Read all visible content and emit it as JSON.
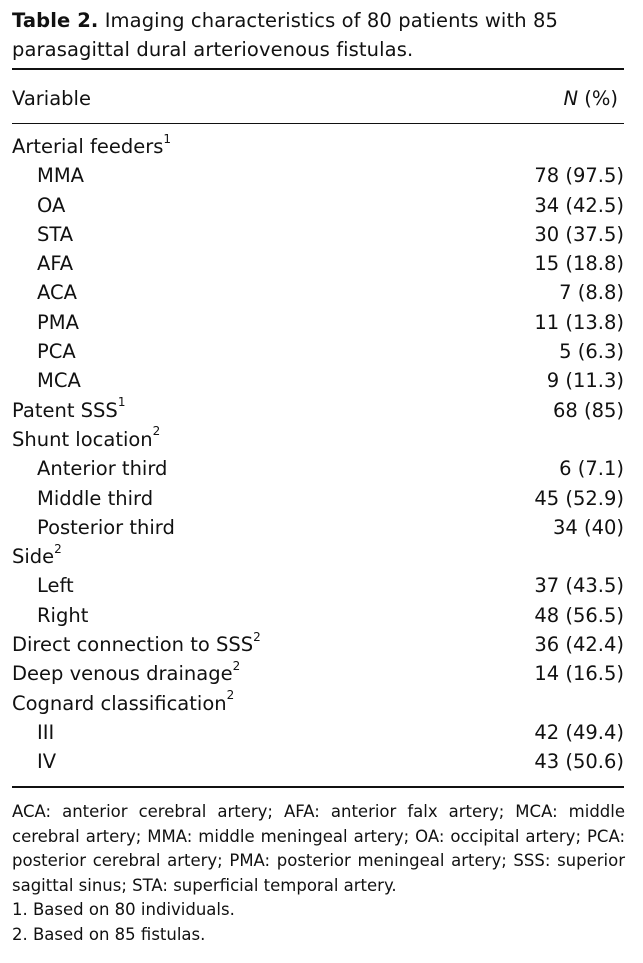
{
  "caption": {
    "label": "Table 2.",
    "text": "Imaging characteristics of 80 patients with 85 parasagittal dural arteriovenous fistulas."
  },
  "header": {
    "variable": "Variable",
    "n_italic": "N",
    "n_rest": " (%)"
  },
  "rows": [
    {
      "label": "Arterial feeders",
      "sup": "1",
      "value": "",
      "indent": false
    },
    {
      "label": "MMA",
      "sup": "",
      "value": "78 (97.5)",
      "indent": true
    },
    {
      "label": "OA",
      "sup": "",
      "value": "34 (42.5)",
      "indent": true
    },
    {
      "label": "STA",
      "sup": "",
      "value": "30 (37.5)",
      "indent": true
    },
    {
      "label": "AFA",
      "sup": "",
      "value": "15 (18.8)",
      "indent": true
    },
    {
      "label": "ACA",
      "sup": "",
      "value": "7 (8.8)",
      "indent": true
    },
    {
      "label": "PMA",
      "sup": "",
      "value": "11 (13.8)",
      "indent": true
    },
    {
      "label": "PCA",
      "sup": "",
      "value": "5 (6.3)",
      "indent": true
    },
    {
      "label": "MCA",
      "sup": "",
      "value": "9 (11.3)",
      "indent": true
    },
    {
      "label": "Patent SSS",
      "sup": "1",
      "value": "68 (85)",
      "indent": false
    },
    {
      "label": "Shunt location",
      "sup": "2",
      "value": "",
      "indent": false
    },
    {
      "label": "Anterior third",
      "sup": "",
      "value": "6 (7.1)",
      "indent": true
    },
    {
      "label": "Middle third",
      "sup": "",
      "value": "45 (52.9)",
      "indent": true
    },
    {
      "label": "Posterior third",
      "sup": "",
      "value": "34 (40)",
      "indent": true
    },
    {
      "label": "Side",
      "sup": "2",
      "value": "",
      "indent": false
    },
    {
      "label": "Left",
      "sup": "",
      "value": "37 (43.5)",
      "indent": true
    },
    {
      "label": "Right",
      "sup": "",
      "value": "48 (56.5)",
      "indent": true
    },
    {
      "label": "Direct connection to SSS",
      "sup": "2",
      "value": "36 (42.4)",
      "indent": false
    },
    {
      "label": "Deep venous drainage",
      "sup": "2",
      "value": "14 (16.5)",
      "indent": false
    },
    {
      "label": "Cognard classification",
      "sup": "2",
      "value": "",
      "indent": false
    },
    {
      "label": "III",
      "sup": "",
      "value": "42 (49.4)",
      "indent": true
    },
    {
      "label": "IV",
      "sup": "",
      "value": "43 (50.6)",
      "indent": true
    }
  ],
  "notes": {
    "abbreviations": "ACA: anterior cerebral artery; AFA: anterior falx artery; MCA: middle cerebral artery; MMA: middle meningeal artery; OA: occipital artery; PCA: posterior cerebral artery; PMA: posterior meningeal artery; SSS: superior sagittal sinus; STA: superficial temporal artery.",
    "footnotes": [
      "1. Based on 80 individuals.",
      "2. Based on 85 fistulas."
    ]
  }
}
